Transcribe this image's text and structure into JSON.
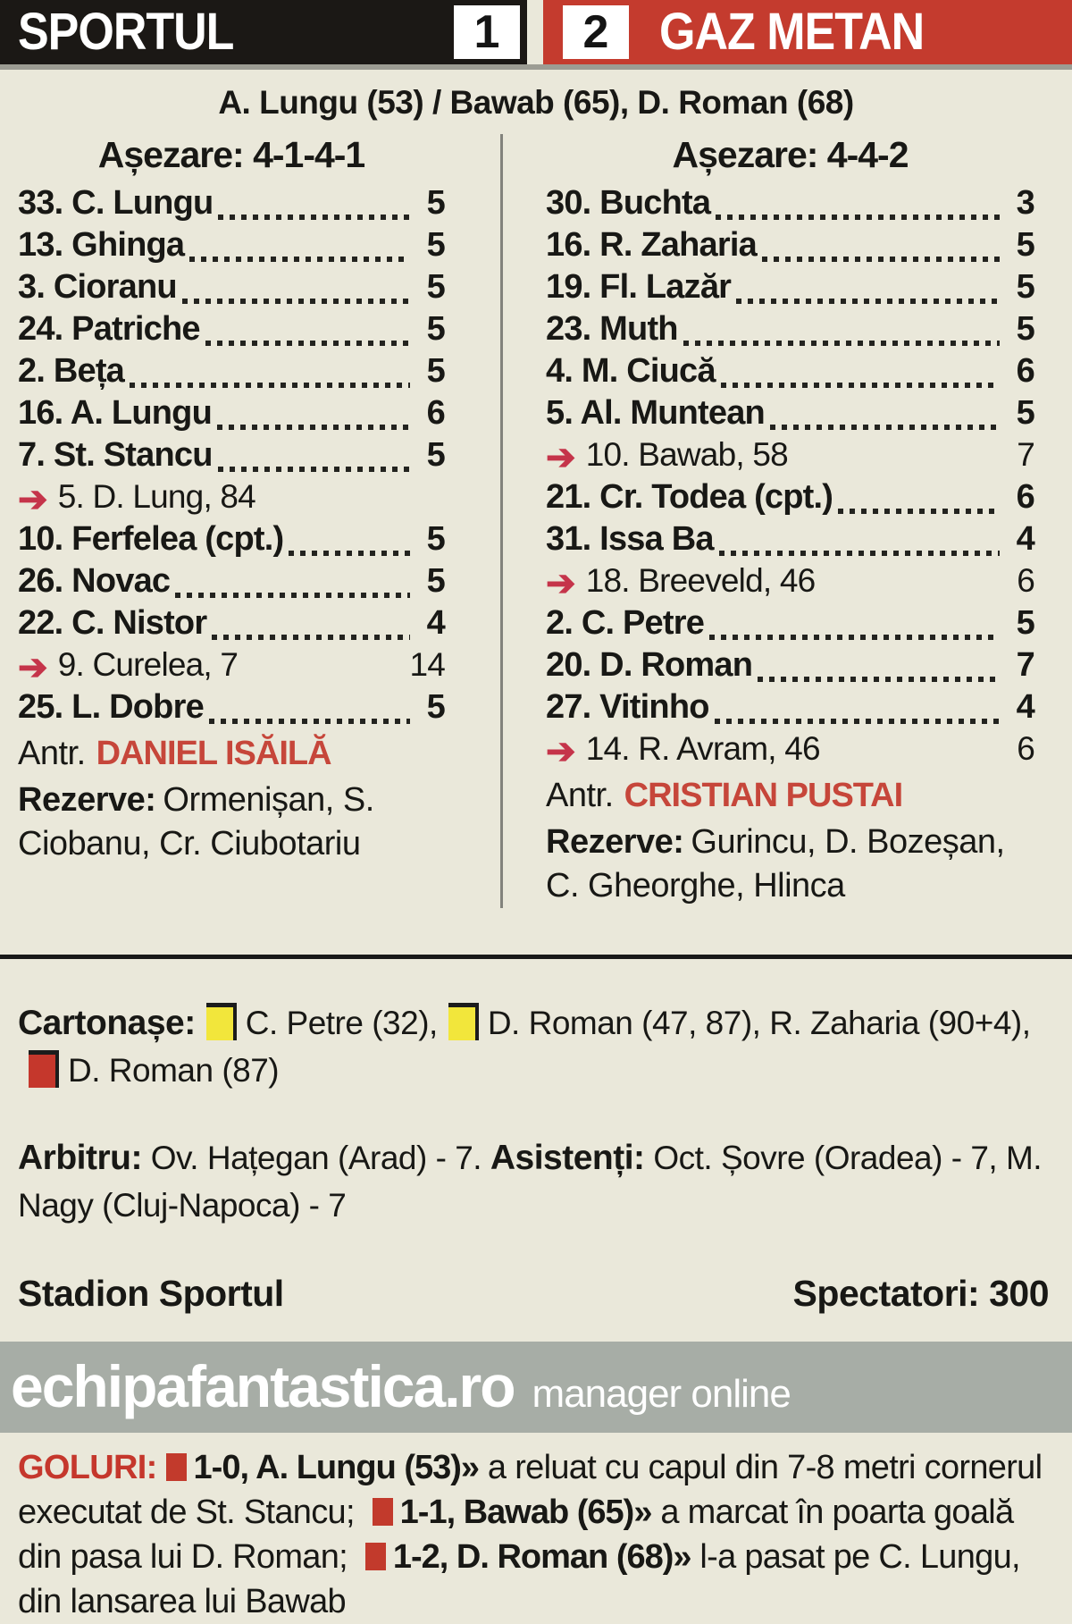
{
  "header": {
    "home_team": "SPORTUL",
    "home_score": "1",
    "away_score": "2",
    "away_team": "GAZ METAN",
    "scorers": "A. Lungu (53) / Bawab (65), D. Roman (68)"
  },
  "icons": {
    "sub_arrow": "➔"
  },
  "home": {
    "formation_title": "Așezare: 4-1-4-1",
    "players": [
      {
        "name": "33. C. Lungu",
        "rating": "5"
      },
      {
        "name": "13. Ghinga",
        "rating": "5"
      },
      {
        "name": "3. Cioranu",
        "rating": "5"
      },
      {
        "name": "24. Patriche",
        "rating": "5"
      },
      {
        "name": "2. Beța",
        "rating": "5"
      },
      {
        "name": "16. A. Lungu",
        "rating": "6"
      },
      {
        "name": "7. St. Stancu",
        "rating": "5"
      },
      {
        "name": "5. D. Lung, 84",
        "rating": "",
        "sub": true
      },
      {
        "name": "10. Ferfelea (cpt.)",
        "rating": "5"
      },
      {
        "name": "26. Novac",
        "rating": "5"
      },
      {
        "name": "22. C. Nistor",
        "rating": "4"
      },
      {
        "name": "9. Curelea, 7",
        "rating": "14",
        "sub": true
      },
      {
        "name": "25. L. Dobre",
        "rating": "5"
      }
    ],
    "coach_label": "Antr.",
    "coach": "DANIEL ISĂILĂ",
    "reserves_label": "Rezerve:",
    "reserves": "Ormenișan, S. Ciobanu, Cr. Ciubotariu"
  },
  "away": {
    "formation_title": "Așezare: 4-4-2",
    "players": [
      {
        "name": "30. Buchta",
        "rating": "3"
      },
      {
        "name": "16. R. Zaharia",
        "rating": "5"
      },
      {
        "name": "19. Fl. Lazăr",
        "rating": "5"
      },
      {
        "name": "23. Muth",
        "rating": "5"
      },
      {
        "name": "4. M. Ciucă",
        "rating": "6"
      },
      {
        "name": "5. Al. Muntean",
        "rating": "5"
      },
      {
        "name": "10. Bawab, 58",
        "rating": "7",
        "sub": true
      },
      {
        "name": "21. Cr. Todea (cpt.)",
        "rating": "6"
      },
      {
        "name": "31. Issa Ba",
        "rating": "4"
      },
      {
        "name": "18. Breeveld, 46",
        "rating": "6",
        "sub": true
      },
      {
        "name": "2. C. Petre",
        "rating": "5"
      },
      {
        "name": "20. D. Roman",
        "rating": "7"
      },
      {
        "name": "27. Vitinho",
        "rating": "4"
      },
      {
        "name": "14. R. Avram, 46",
        "rating": "6",
        "sub": true
      }
    ],
    "coach_label": "Antr.",
    "coach": "CRISTIAN PUSTAI",
    "reserves_label": "Rezerve:",
    "reserves": "Gurincu, D. Bozeșan, C. Gheorghe, Hlinca"
  },
  "cards": {
    "label": "Cartonașe:",
    "yellow1": "C. Petre (32),",
    "yellow2": "D. Roman (47, 87), R. Zaharia (90+4),",
    "red1": "D. Roman (87)"
  },
  "officials": {
    "referee_label": "Arbitru:",
    "referee": " Ov. Hațegan (Arad) - 7. ",
    "assistants_label": "Asistenți:",
    "assistants": " Oct. Șovre (Oradea) - 7, M. Nagy (Cluj-Napoca) - 7"
  },
  "venue": {
    "stadium": "Stadion Sportul",
    "spectators": "Spectatori: 300"
  },
  "banner": {
    "site": "echipafantastica.ro",
    "tagline": "manager online"
  },
  "goals": {
    "label": "GOLURI:",
    "items": [
      {
        "score": "1-0, A. Lungu (53)»",
        "desc": " a reluat cu capul din 7-8 metri cornerul executat de St. Stancu; "
      },
      {
        "score": "1-1, Bawab (65)»",
        "desc": " a marcat în poarta goală din pasa lui D. Roman; "
      },
      {
        "score": "1-2, D. Roman (68)»",
        "desc": " l-a pasat pe C. Lungu, din lansarea lui Bawab"
      }
    ]
  }
}
